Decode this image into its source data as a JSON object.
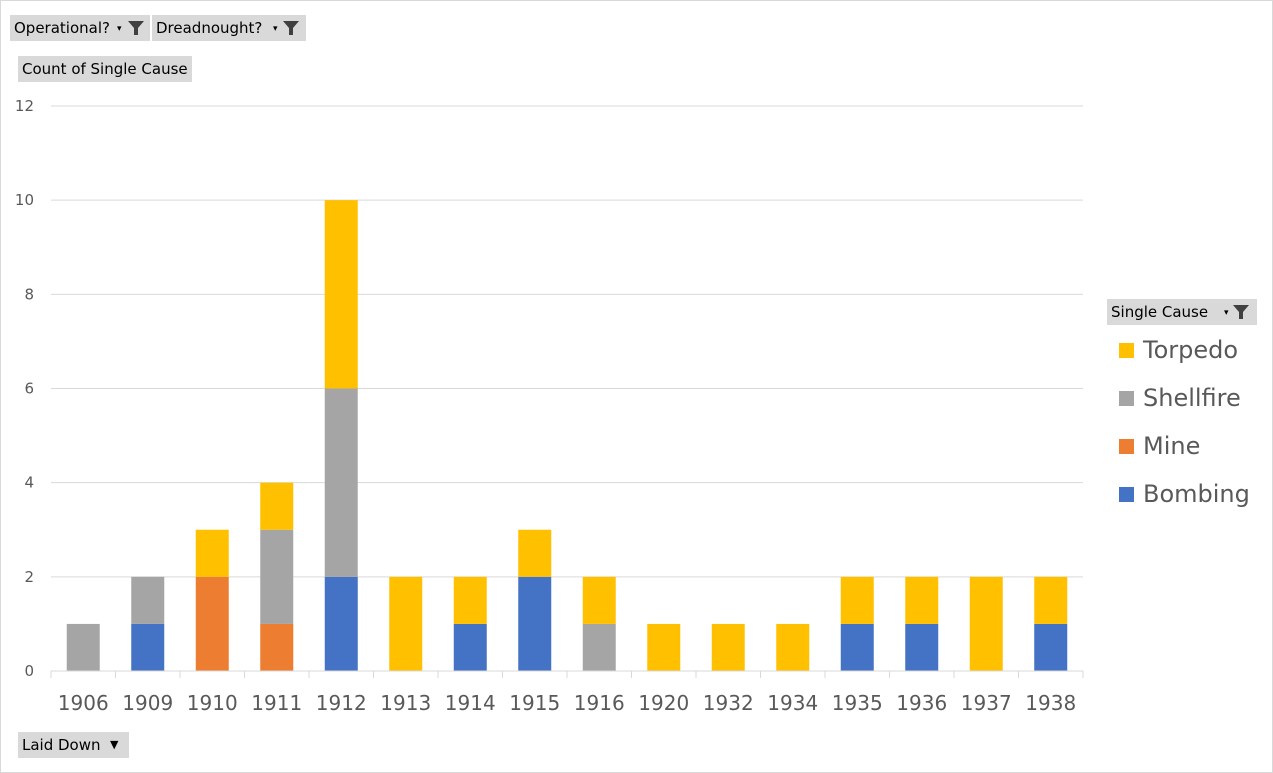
{
  "filters": {
    "operational": {
      "label": "Operational?",
      "icon": "filter-icon"
    },
    "dreadnought": {
      "label": "Dreadnought?",
      "icon": "filter-icon"
    }
  },
  "value_field": {
    "label": "Count of Single Cause"
  },
  "axis_field": {
    "label": "Laid Down",
    "icon": "dropdown-arrow-icon"
  },
  "legend_field": {
    "label": "Single Cause",
    "icon": "filter-icon"
  },
  "colors": {
    "Bombing": "#4472c4",
    "Mine": "#ed7d31",
    "Shellfire": "#a5a5a5",
    "Torpedo": "#ffc000",
    "gridline": "#d9d9d9",
    "field_button": "#d9d9d9"
  },
  "legend_order": [
    "Torpedo",
    "Shellfire",
    "Mine",
    "Bombing"
  ],
  "chart_data": {
    "type": "bar",
    "stacked": true,
    "title": "",
    "xlabel": "Laid Down",
    "ylabel": "Count of Single Cause",
    "ylim": [
      0,
      12
    ],
    "yticks": [
      0,
      2,
      4,
      6,
      8,
      10,
      12
    ],
    "grid": true,
    "legend_position": "right",
    "categories": [
      "1906",
      "1909",
      "1910",
      "1911",
      "1912",
      "1913",
      "1914",
      "1915",
      "1916",
      "1920",
      "1932",
      "1934",
      "1935",
      "1936",
      "1937",
      "1938"
    ],
    "series": [
      {
        "name": "Bombing",
        "values": [
          0,
          1,
          0,
          0,
          2,
          0,
          1,
          2,
          0,
          0,
          0,
          0,
          1,
          1,
          0,
          1
        ]
      },
      {
        "name": "Mine",
        "values": [
          0,
          0,
          2,
          1,
          0,
          0,
          0,
          0,
          0,
          0,
          0,
          0,
          0,
          0,
          0,
          0
        ]
      },
      {
        "name": "Shellfire",
        "values": [
          1,
          1,
          0,
          2,
          4,
          0,
          0,
          0,
          1,
          0,
          0,
          0,
          0,
          0,
          0,
          0
        ]
      },
      {
        "name": "Torpedo",
        "values": [
          0,
          0,
          1,
          1,
          4,
          2,
          1,
          1,
          1,
          1,
          1,
          1,
          1,
          1,
          2,
          1
        ]
      }
    ]
  }
}
